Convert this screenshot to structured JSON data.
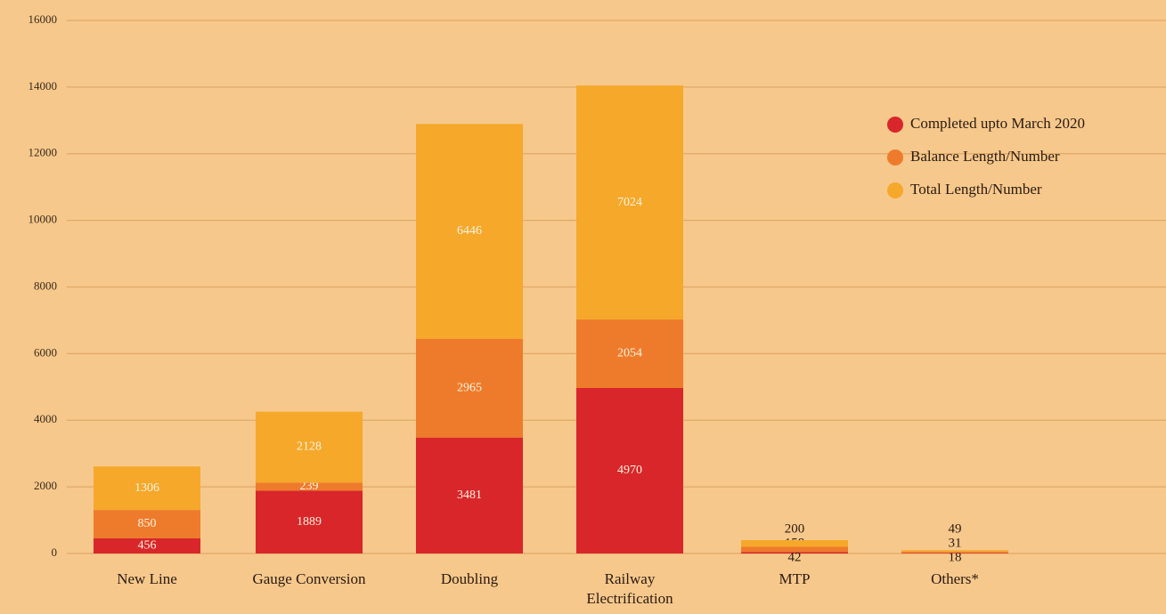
{
  "chart_data": {
    "type": "stacked_bar",
    "categories": [
      "New Line",
      "Gauge Conversion",
      "Doubling",
      "Railway Electrification",
      "MTP",
      "Others*"
    ],
    "series": [
      {
        "name": "Completed upto March 2020",
        "color": "#d8262a",
        "values": [
          456,
          1889,
          3481,
          4970,
          42,
          18
        ]
      },
      {
        "name": "Balance Length/Number",
        "color": "#ee7b2c",
        "values": [
          850,
          239,
          2965,
          2054,
          158,
          31
        ]
      },
      {
        "name": "Total Length/Number",
        "color": "#f6a82b",
        "values": [
          1306,
          2128,
          6446,
          7024,
          200,
          49
        ]
      }
    ],
    "ylim": [
      0,
      16000
    ],
    "yticks": [
      0,
      2000,
      4000,
      6000,
      8000,
      10000,
      12000,
      14000,
      16000
    ],
    "grid": true,
    "legend": "upper right"
  }
}
